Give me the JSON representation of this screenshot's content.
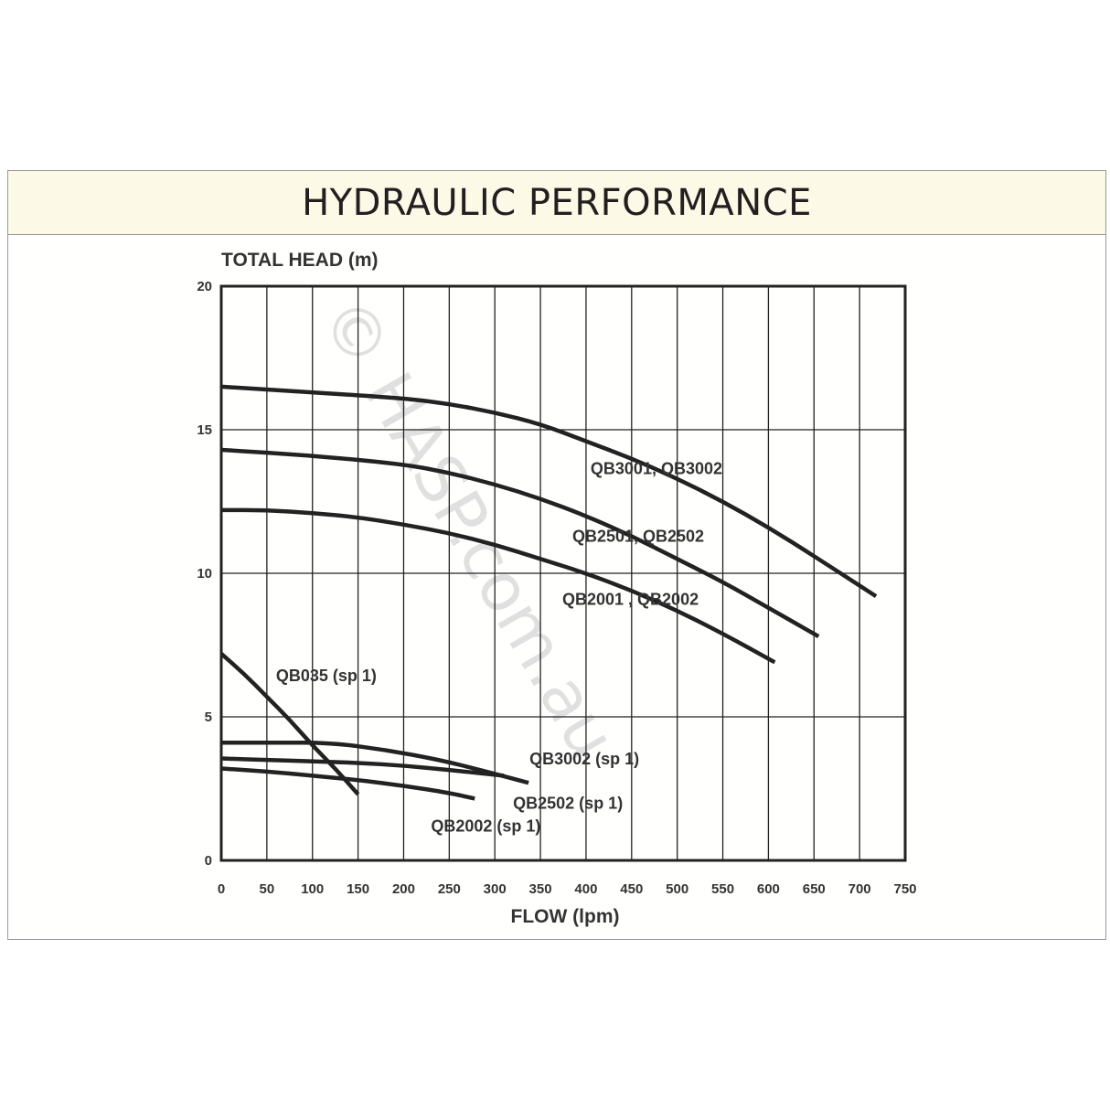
{
  "chart_data": {
    "type": "line",
    "title": "HYDRAULIC PERFORMANCE",
    "ylabel": "TOTAL HEAD (m)",
    "xlabel": "FLOW (lpm)",
    "xlim": [
      0,
      750
    ],
    "ylim": [
      0,
      20
    ],
    "x_ticks": [
      0,
      50,
      100,
      150,
      200,
      250,
      300,
      350,
      400,
      450,
      500,
      550,
      600,
      650,
      700,
      750
    ],
    "y_ticks": [
      0,
      5,
      10,
      15,
      20
    ],
    "grid": true,
    "watermark": "© HASP.com.au",
    "series": [
      {
        "name": "QB3001, QB3002",
        "x": [
          0,
          100,
          200,
          250,
          300,
          350,
          400,
          450,
          500,
          550,
          600,
          650,
          718
        ],
        "y": [
          16.5,
          16.3,
          16.1,
          15.9,
          15.6,
          15.2,
          14.6,
          14.0,
          13.3,
          12.5,
          11.6,
          10.6,
          9.2
        ]
      },
      {
        "name": "QB2501, QB2502",
        "x": [
          0,
          100,
          200,
          250,
          300,
          350,
          400,
          450,
          500,
          550,
          600,
          655
        ],
        "y": [
          14.3,
          14.1,
          13.8,
          13.5,
          13.1,
          12.6,
          12.0,
          11.3,
          10.5,
          9.7,
          8.8,
          7.8
        ]
      },
      {
        "name": "QB2001 , QB2002",
        "x": [
          0,
          50,
          100,
          150,
          200,
          250,
          300,
          350,
          400,
          450,
          500,
          550,
          607
        ],
        "y": [
          12.2,
          12.2,
          12.1,
          11.95,
          11.7,
          11.4,
          11.0,
          10.5,
          10.0,
          9.4,
          8.7,
          7.9,
          6.9
        ]
      },
      {
        "name": "QB035 (sp 1)",
        "x": [
          0,
          25,
          50,
          75,
          100,
          125,
          150
        ],
        "y": [
          7.2,
          6.5,
          5.7,
          4.9,
          4.0,
          3.2,
          2.3
        ]
      },
      {
        "name": "QB3002 (sp 1)",
        "x": [
          0,
          60,
          120,
          180,
          240,
          290,
          337
        ],
        "y": [
          4.1,
          4.1,
          4.1,
          3.85,
          3.5,
          3.1,
          2.7
        ]
      },
      {
        "name": "QB2502 (sp 1)",
        "x": [
          0,
          50,
          100,
          150,
          200,
          250,
          310
        ],
        "y": [
          3.55,
          3.5,
          3.45,
          3.4,
          3.3,
          3.15,
          2.95
        ]
      },
      {
        "name": "QB2002 (sp 1)",
        "x": [
          0,
          50,
          100,
          150,
          200,
          250,
          278
        ],
        "y": [
          3.2,
          3.1,
          2.95,
          2.8,
          2.6,
          2.35,
          2.15
        ]
      }
    ]
  }
}
